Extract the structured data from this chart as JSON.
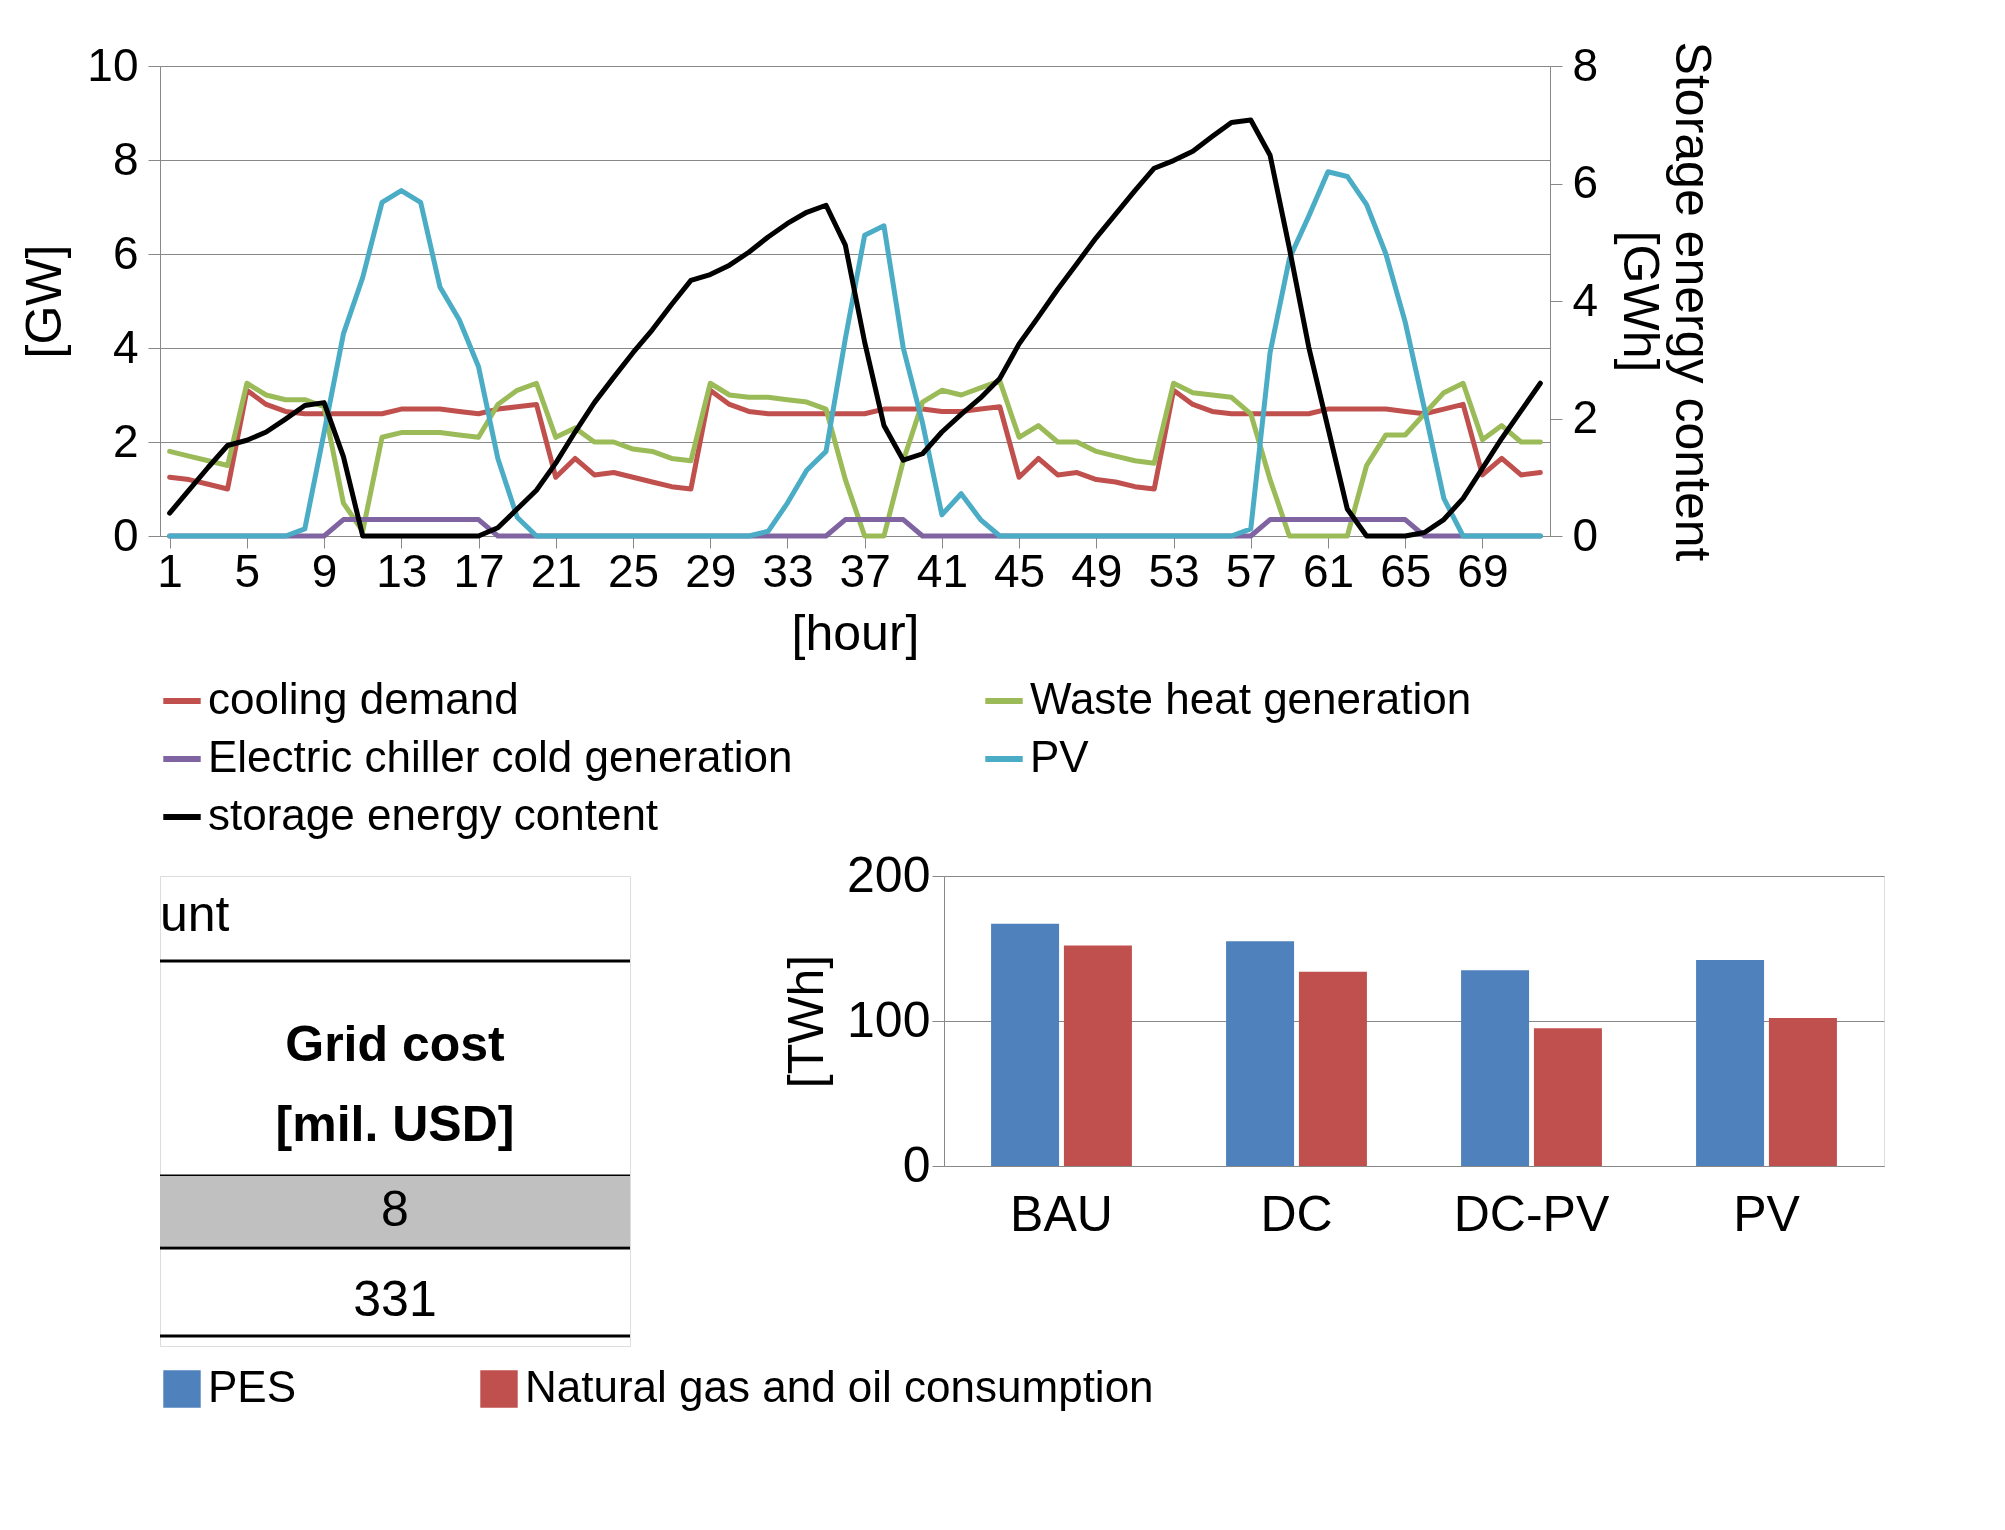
{
  "chart_data": [
    {
      "type": "line",
      "xlabel": "[hour]",
      "ylabel": "[GW]",
      "y2label": "Storage energy content [GWh]",
      "categories": [
        "1",
        null,
        null,
        null,
        "5",
        null,
        null,
        null,
        "9",
        null,
        null,
        null,
        "13",
        null,
        null,
        null,
        "17",
        null,
        null,
        null,
        "21",
        null,
        null,
        null,
        "25",
        null,
        null,
        null,
        "29",
        null,
        null,
        null,
        "33",
        null,
        null,
        null,
        "37",
        null,
        null,
        null,
        "41",
        null,
        null,
        null,
        "45",
        null,
        null,
        null,
        "49",
        null,
        null,
        null,
        "53",
        null,
        null,
        null,
        "57",
        null,
        null,
        null,
        "61",
        null,
        null,
        null,
        "65",
        null,
        null,
        null,
        "69",
        null,
        null,
        null
      ],
      "ylim": [
        0,
        10
      ],
      "yticks": [
        0,
        2,
        4,
        6,
        8,
        10
      ],
      "y2lim": [
        0,
        8
      ],
      "y2ticks": [
        0,
        2,
        4,
        6,
        8
      ],
      "grid": "y",
      "legend": "bottom",
      "series": [
        {
          "name": "cooling demand",
          "color": "#c0504d",
          "values": [
            1.25,
            1.2,
            1.1,
            1.0,
            3.1,
            2.8,
            2.65,
            2.6,
            2.6,
            2.6,
            2.6,
            2.6,
            2.7,
            2.7,
            2.7,
            2.65,
            2.6,
            2.7,
            2.75,
            2.8,
            1.25,
            1.65,
            1.3,
            1.35,
            1.25,
            1.15,
            1.05,
            1.0,
            3.1,
            2.8,
            2.65,
            2.6,
            2.6,
            2.6,
            2.6,
            2.6,
            2.6,
            2.7,
            2.7,
            2.7,
            2.65,
            2.65,
            2.7,
            2.75,
            1.25,
            1.65,
            1.3,
            1.35,
            1.2,
            1.15,
            1.05,
            1.0,
            3.1,
            2.8,
            2.65,
            2.6,
            2.6,
            2.6,
            2.6,
            2.6,
            2.7,
            2.7,
            2.7,
            2.7,
            2.65,
            2.6,
            2.7,
            2.8,
            1.3,
            1.65,
            1.3,
            1.35
          ]
        },
        {
          "name": "Waste heat generation",
          "color": "#9bbb59",
          "values": [
            1.8,
            1.7,
            1.6,
            1.5,
            3.25,
            3.0,
            2.9,
            2.9,
            2.75,
            0.7,
            0.1,
            2.1,
            2.2,
            2.2,
            2.2,
            2.15,
            2.1,
            2.8,
            3.1,
            3.25,
            2.1,
            2.3,
            2.0,
            2.0,
            1.85,
            1.8,
            1.65,
            1.6,
            3.25,
            3.0,
            2.95,
            2.95,
            2.9,
            2.85,
            2.7,
            1.2,
            0,
            0,
            1.6,
            2.85,
            3.1,
            3.0,
            3.15,
            3.3,
            2.1,
            2.35,
            2.0,
            2.0,
            1.8,
            1.7,
            1.6,
            1.55,
            3.25,
            3.05,
            3.0,
            2.95,
            2.6,
            1.2,
            0,
            0,
            0,
            0,
            1.5,
            2.15,
            2.15,
            2.6,
            3.05,
            3.25,
            2.05,
            2.35,
            2.0,
            2.0
          ]
        },
        {
          "name": "Electric chiller cold generation",
          "color": "#8064a2",
          "values": [
            0,
            0,
            0,
            0,
            0,
            0,
            0,
            0,
            0,
            0.35,
            0.35,
            0.35,
            0.35,
            0.35,
            0.35,
            0.35,
            0.35,
            0,
            0,
            0,
            0,
            0,
            0,
            0,
            0,
            0,
            0,
            0,
            0,
            0,
            0,
            0,
            0,
            0,
            0,
            0.35,
            0.35,
            0.35,
            0.35,
            0,
            0,
            0,
            0,
            0,
            0,
            0,
            0,
            0,
            0,
            0,
            0,
            0,
            0,
            0,
            0,
            0,
            0,
            0.35,
            0.35,
            0.35,
            0.35,
            0.35,
            0.35,
            0.35,
            0.35,
            0,
            0,
            0,
            0,
            0,
            0,
            0
          ]
        },
        {
          "name": "PV",
          "color": "#4bacc6",
          "values": [
            0,
            0,
            0,
            0,
            0,
            0,
            0,
            0.15,
            2.2,
            4.3,
            5.5,
            7.1,
            7.35,
            7.1,
            5.3,
            4.6,
            3.6,
            1.65,
            0.4,
            0,
            0,
            0,
            0,
            0,
            0,
            0,
            0,
            0,
            0,
            0,
            0,
            0.1,
            0.7,
            1.4,
            1.8,
            4.2,
            6.4,
            6.6,
            4.0,
            2.4,
            0.45,
            0.9,
            0.35,
            0,
            0,
            0,
            0,
            0,
            0,
            0,
            0,
            0,
            0,
            0,
            0,
            0,
            0.15,
            3.9,
            5.9,
            6.8,
            7.75,
            7.65,
            7.05,
            6.0,
            4.55,
            2.7,
            0.8,
            0,
            0,
            0,
            0,
            0
          ]
        },
        {
          "name": "storage energy content",
          "color": "#000000",
          "axis": "y2",
          "values": [
            0.39,
            0.78,
            1.17,
            1.54,
            1.63,
            1.77,
            1.99,
            2.22,
            2.27,
            1.35,
            0,
            0,
            0,
            0,
            0,
            0,
            0,
            0.14,
            0.46,
            0.78,
            1.24,
            1.77,
            2.27,
            2.7,
            3.12,
            3.51,
            3.94,
            4.35,
            4.45,
            4.61,
            4.83,
            5.09,
            5.32,
            5.51,
            5.63,
            4.95,
            3.3,
            1.88,
            1.29,
            1.4,
            1.77,
            2.07,
            2.35,
            2.68,
            3.27,
            3.73,
            4.2,
            4.64,
            5.08,
            5.48,
            5.88,
            6.26,
            6.39,
            6.55,
            6.8,
            7.04,
            7.08,
            6.48,
            4.9,
            3.22,
            1.84,
            0.46,
            0,
            0,
            0,
            0.06,
            0.28,
            0.64,
            1.15,
            1.66,
            2.13,
            2.6
          ]
        }
      ]
    },
    {
      "type": "other",
      "annotations": [
        "unt",
        "Grid cost [mil. USD]",
        "8",
        "331"
      ]
    },
    {
      "type": "bar",
      "ylabel": "[TWh]",
      "categories": [
        "BAU",
        "DC",
        "DC-PV",
        "PV"
      ],
      "ylim": [
        0,
        200
      ],
      "yticks": [
        0,
        100,
        200
      ],
      "grid": "y",
      "legend": "bottom",
      "series": [
        {
          "name": "PES",
          "color": "#4f81bd",
          "values": [
            167,
            155,
            135,
            142
          ]
        },
        {
          "name": "Natural gas and oil consumption",
          "color": "#c0504d",
          "values": [
            152,
            134,
            95,
            102
          ]
        }
      ]
    }
  ]
}
